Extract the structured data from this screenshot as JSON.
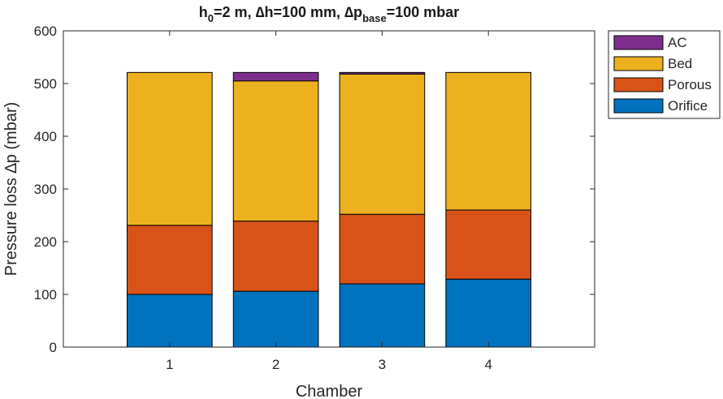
{
  "chart_data": {
    "type": "bar",
    "stacked": true,
    "title": {
      "prefix": "h",
      "prefix_sub": "0",
      "middle": "=2 m, ∆h=100 mm, ∆p",
      "middle_sub": "base",
      "suffix": "=100 mbar"
    },
    "xlabel": "Chamber",
    "ylabel": "Pressure loss ∆p (mbar)",
    "categories": [
      "1",
      "2",
      "3",
      "4"
    ],
    "xlim": [
      0,
      5
    ],
    "ylim": [
      0,
      600
    ],
    "yticks": [
      0,
      100,
      200,
      300,
      400,
      500,
      600
    ],
    "grid": false,
    "legend_position": "outside top-right",
    "series": [
      {
        "name": "Orifice",
        "color": "#0072BD",
        "values": [
          100,
          106,
          120,
          129
        ]
      },
      {
        "name": "Porous",
        "color": "#D95319",
        "values": [
          131,
          133,
          132,
          131
        ]
      },
      {
        "name": "Bed",
        "color": "#EDB120",
        "values": [
          290,
          266,
          266,
          261
        ]
      },
      {
        "name": "AC",
        "color": "#7E2F8E",
        "values": [
          0,
          16,
          3,
          0
        ]
      }
    ],
    "legend_order": [
      "AC",
      "Bed",
      "Porous",
      "Orifice"
    ]
  }
}
